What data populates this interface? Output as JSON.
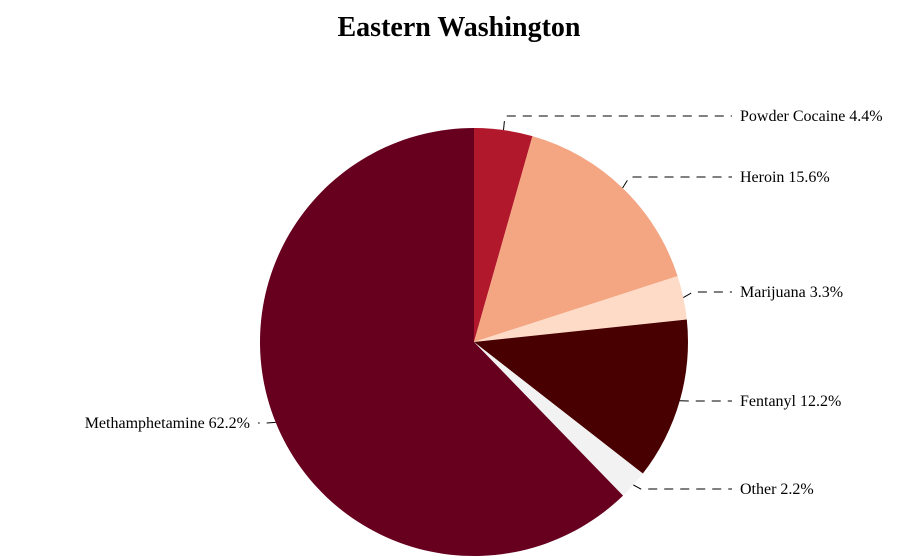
{
  "chart_data": {
    "type": "pie",
    "title": "Eastern Washington",
    "start_angle_deg": 0,
    "direction": "clockwise",
    "slices": [
      {
        "label": "Powder Cocaine",
        "value": 4.4,
        "value_label": "4.4%",
        "color": "#b2182b"
      },
      {
        "label": "Heroin",
        "value": 15.6,
        "value_label": "15.6%",
        "color": "#f4a582"
      },
      {
        "label": "Marijuana",
        "value": 3.3,
        "value_label": "3.3%",
        "color": "#fddbc7"
      },
      {
        "label": "Fentanyl",
        "value": 12.2,
        "value_label": "12.2%",
        "color": "#490000"
      },
      {
        "label": "Other",
        "value": 2.2,
        "value_label": "2.2%",
        "color": "#f2f2f2"
      },
      {
        "label": "Methamphetamine",
        "value": 62.2,
        "value_label": "62.2%",
        "color": "#67001f"
      }
    ]
  }
}
